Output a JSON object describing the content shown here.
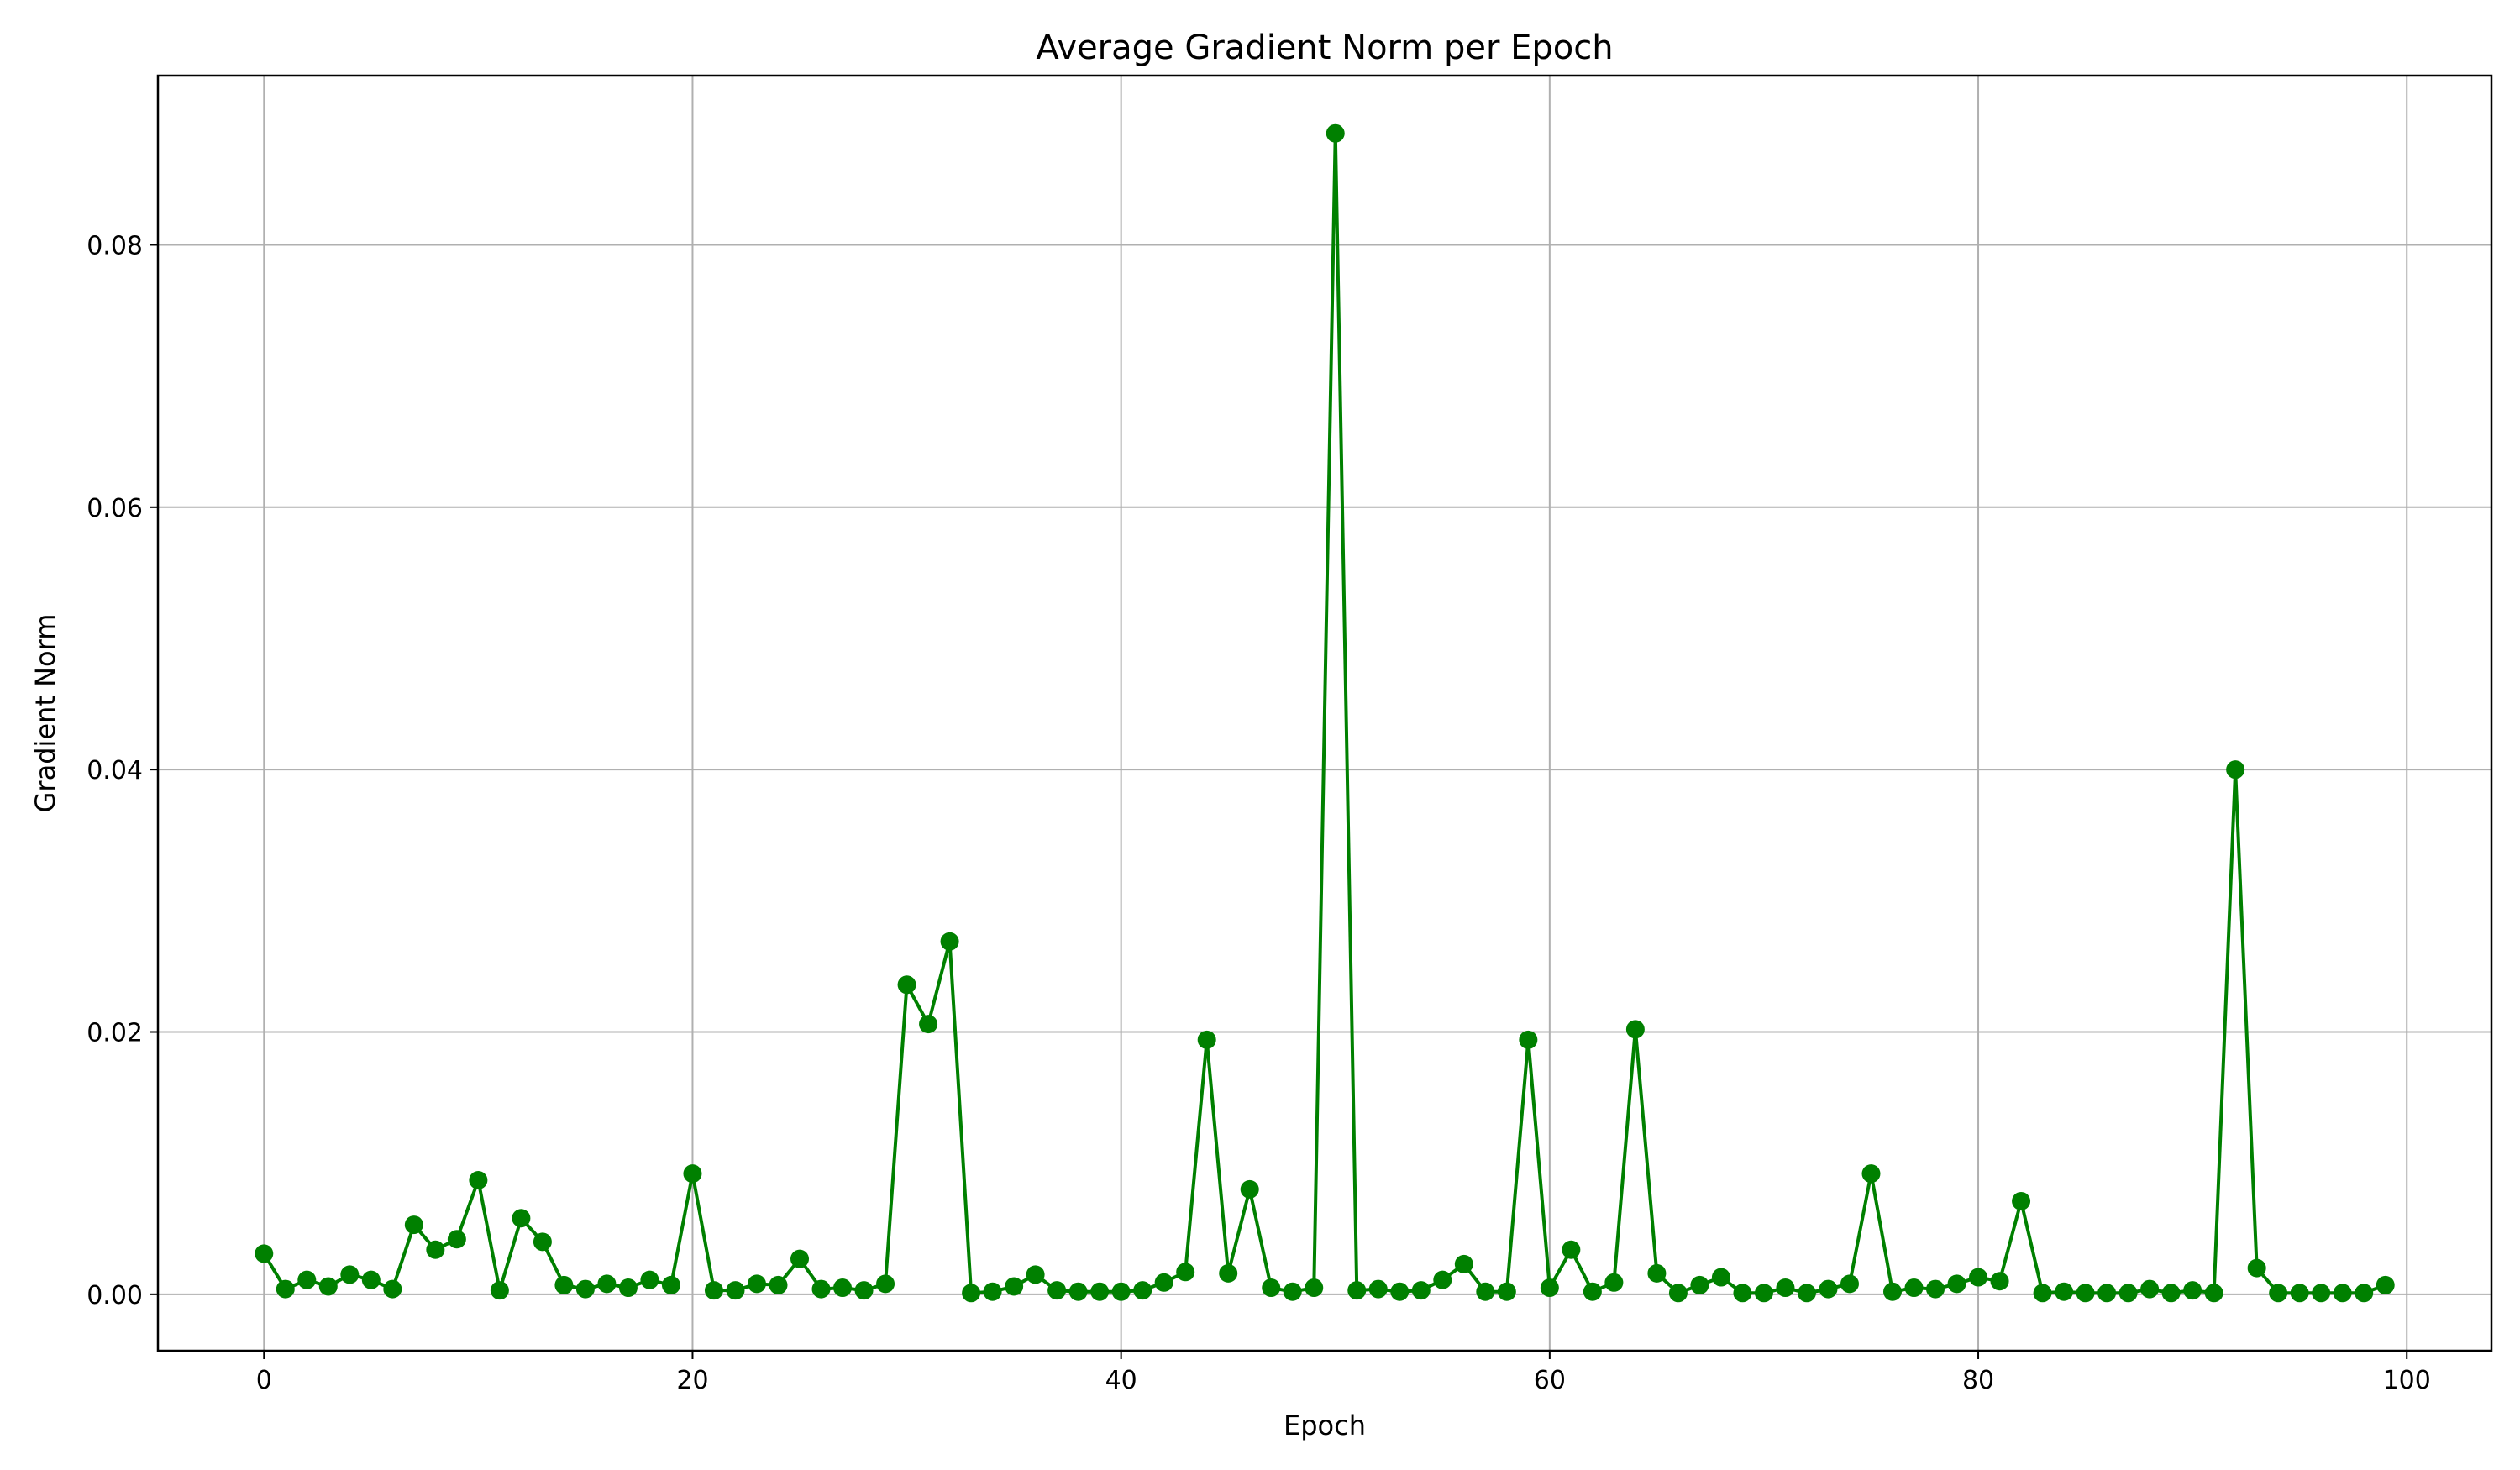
{
  "chart_data": {
    "type": "line",
    "title": "Average Gradient Norm per Epoch",
    "xlabel": "Epoch",
    "ylabel": "Gradient Norm",
    "xlim": [
      -4.95,
      103.95
    ],
    "ylim": [
      -0.0043,
      0.0929
    ],
    "xticks": [
      0,
      20,
      40,
      60,
      80,
      100
    ],
    "xtick_labels": [
      "0",
      "20",
      "40",
      "60",
      "80",
      "100"
    ],
    "yticks": [
      0.0,
      0.02,
      0.04,
      0.06,
      0.08
    ],
    "ytick_labels": [
      "0.00",
      "0.02",
      "0.04",
      "0.06",
      "0.08"
    ],
    "grid": true,
    "series": [
      {
        "color": "#008000",
        "marker": "circle",
        "x": [
          0,
          1,
          2,
          3,
          4,
          5,
          6,
          7,
          8,
          9,
          10,
          11,
          12,
          13,
          14,
          15,
          16,
          17,
          18,
          19,
          20,
          21,
          22,
          23,
          24,
          25,
          26,
          27,
          28,
          29,
          30,
          31,
          32,
          33,
          34,
          35,
          36,
          37,
          38,
          39,
          40,
          41,
          42,
          43,
          44,
          45,
          46,
          47,
          48,
          49,
          50,
          51,
          52,
          53,
          54,
          55,
          56,
          57,
          58,
          59,
          60,
          61,
          62,
          63,
          64,
          65,
          66,
          67,
          68,
          69,
          70,
          71,
          72,
          73,
          74,
          75,
          76,
          77,
          78,
          79,
          80,
          81,
          82,
          83,
          84,
          85,
          86,
          87,
          88,
          89,
          90,
          91,
          92,
          93,
          94,
          95,
          96,
          97,
          98,
          99
        ],
        "y": [
          0.0031,
          0.0004,
          0.0011,
          0.0006,
          0.0015,
          0.0011,
          0.0004,
          0.0053,
          0.0034,
          0.0042,
          0.0087,
          0.0003,
          0.0058,
          0.004,
          0.0007,
          0.0004,
          0.0008,
          0.0005,
          0.0011,
          0.0007,
          0.0092,
          0.0003,
          0.0003,
          0.0008,
          0.0007,
          0.0027,
          0.0004,
          0.0005,
          0.0003,
          0.0008,
          0.0236,
          0.0206,
          0.0269,
          0.0001,
          0.0002,
          0.0006,
          0.0015,
          0.0003,
          0.0002,
          0.0002,
          0.0002,
          0.0003,
          0.0009,
          0.0017,
          0.0194,
          0.0016,
          0.008,
          0.0005,
          0.0002,
          0.0005,
          0.0885,
          0.0003,
          0.0004,
          0.0002,
          0.0003,
          0.0011,
          0.0023,
          0.0002,
          0.0002,
          0.0194,
          0.0005,
          0.0034,
          0.0002,
          0.0009,
          0.0202,
          0.0016,
          0.0001,
          0.0007,
          0.0013,
          0.0001,
          0.0001,
          0.0005,
          0.0001,
          0.0004,
          0.0008,
          0.0092,
          0.0002,
          0.0005,
          0.0004,
          0.0008,
          0.0013,
          0.001,
          0.0071,
          0.0001,
          0.0002,
          0.0001,
          0.0001,
          0.0001,
          0.0004,
          0.0001,
          0.0003,
          0.0001,
          0.04,
          0.002,
          0.0001,
          0.0001,
          0.0001,
          0.0001,
          0.0001,
          0.0007
        ]
      }
    ]
  }
}
